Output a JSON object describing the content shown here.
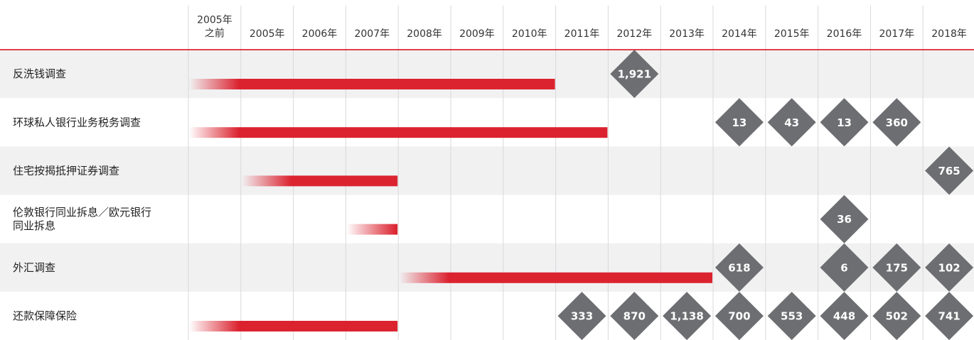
{
  "columns": [
    "2005年\n之前",
    "2005年",
    "2006年",
    "2007年",
    "2008年",
    "2009年",
    "2010年",
    "2011年",
    "2012年",
    "2013年",
    "2014年",
    "2015年",
    "2016年",
    "2017年",
    "2018年"
  ],
  "rows": [
    {
      "label": "反洗钱调查",
      "period": [
        0,
        6
      ],
      "fines": [
        null,
        null,
        null,
        null,
        null,
        null,
        null,
        null,
        "1,921",
        null,
        null,
        null,
        null,
        null,
        null
      ]
    },
    {
      "label": "环球私人银行业务税务调查",
      "period": [
        0,
        7
      ],
      "fines": [
        null,
        null,
        null,
        null,
        null,
        null,
        null,
        null,
        null,
        null,
        "13",
        "43",
        "13",
        "360",
        null
      ]
    },
    {
      "label": "住宅按揭抵押证券调查",
      "period": [
        1,
        3
      ],
      "fines": [
        null,
        null,
        null,
        null,
        null,
        null,
        null,
        null,
        null,
        null,
        null,
        null,
        null,
        null,
        "765"
      ]
    },
    {
      "label": "伦敦银行同业拆息／欧元银行\n同业拆息",
      "period": [
        3,
        3
      ],
      "fines": [
        null,
        null,
        null,
        null,
        null,
        null,
        null,
        null,
        null,
        null,
        null,
        null,
        "36",
        null,
        null
      ]
    },
    {
      "label": "外汇调查",
      "period": [
        4,
        9
      ],
      "fines": [
        null,
        null,
        null,
        null,
        null,
        null,
        null,
        null,
        null,
        null,
        "618",
        null,
        "6",
        "175",
        "102"
      ]
    },
    {
      "label": "还款保障保险",
      "period": [
        0,
        3
      ],
      "fines": [
        null,
        null,
        null,
        null,
        null,
        null,
        null,
        "333",
        "870",
        "1,138",
        "700",
        "553",
        "448",
        "502",
        "741"
      ]
    }
  ]
}
